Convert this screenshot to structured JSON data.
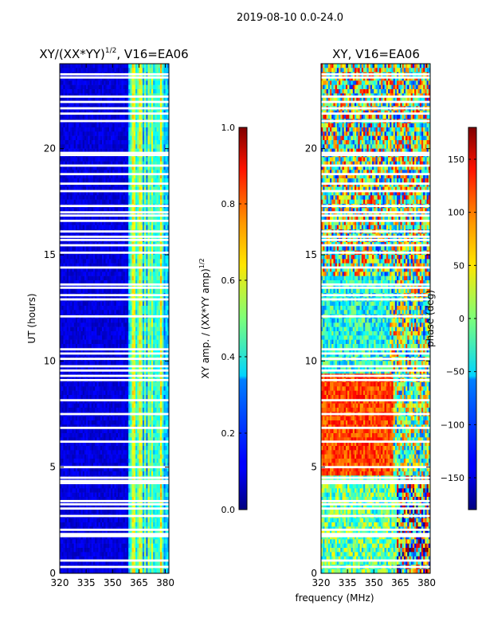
{
  "figure_title": "2019-08-10 0.0-24.0",
  "chart_data": [
    {
      "type": "heatmap",
      "title": "XY/(XX*YY)^{1/2}, V16=EA06",
      "title_main": "XY/(XX*YY)",
      "title_sup": "1/2",
      "title_tail": ", V16=EA06",
      "xlabel": "",
      "ylabel": "UT (hours)",
      "xlim": [
        320,
        382
      ],
      "ylim": [
        0,
        24
      ],
      "xticks": [
        320,
        335,
        350,
        365,
        380
      ],
      "yticks": [
        0,
        5,
        10,
        15,
        20
      ],
      "quantity": "amplitude",
      "bright_band_mhz": [
        359,
        382
      ],
      "colorbar": {
        "label": "XY amp. / (XX*YY amp)^{1/2}",
        "label_main": "XY amp. / (XX*YY amp)",
        "label_sup": "1/2",
        "min": 0.0,
        "max": 1.0,
        "ticks": [
          "0.0",
          "0.2",
          "0.4",
          "0.6",
          "0.8",
          "1.0"
        ],
        "tick_values": [
          0.0,
          0.2,
          0.4,
          0.6,
          0.8,
          1.0
        ]
      }
    },
    {
      "type": "heatmap",
      "title": "XY, V16=EA06",
      "xlabel": "frequency (MHz)",
      "ylabel": "",
      "xlim": [
        320,
        382
      ],
      "ylim": [
        0,
        24
      ],
      "xticks": [
        320,
        335,
        350,
        365,
        380
      ],
      "yticks": [
        0,
        5,
        10,
        15,
        20
      ],
      "quantity": "phase",
      "colorbar": {
        "label": "phase (deg)",
        "min": -180,
        "max": 180,
        "ticks": [
          "150",
          "100",
          "50",
          "0",
          "−50",
          "−100",
          "−150"
        ],
        "tick_values": [
          150,
          100,
          50,
          0,
          -50,
          -100,
          -150
        ]
      }
    }
  ],
  "gaps_ut_hours": [
    0.3,
    0.6,
    1.75,
    1.85,
    2.05,
    2.7,
    3.05,
    3.25,
    3.4,
    4.25,
    4.35,
    4.5,
    5.0,
    6.2,
    6.85,
    7.5,
    8.15,
    9.1,
    9.3,
    9.55,
    9.75,
    10.1,
    10.35,
    10.55,
    12.1,
    12.9,
    13.1,
    13.45,
    13.6,
    14.4,
    15.1,
    15.45,
    15.7,
    15.85,
    16.1,
    16.6,
    16.85,
    17.0,
    17.3,
    18.0,
    18.35,
    18.8,
    19.2,
    19.7,
    19.8,
    21.3,
    21.65,
    21.9,
    22.2,
    22.45,
    23.35,
    23.5
  ]
}
